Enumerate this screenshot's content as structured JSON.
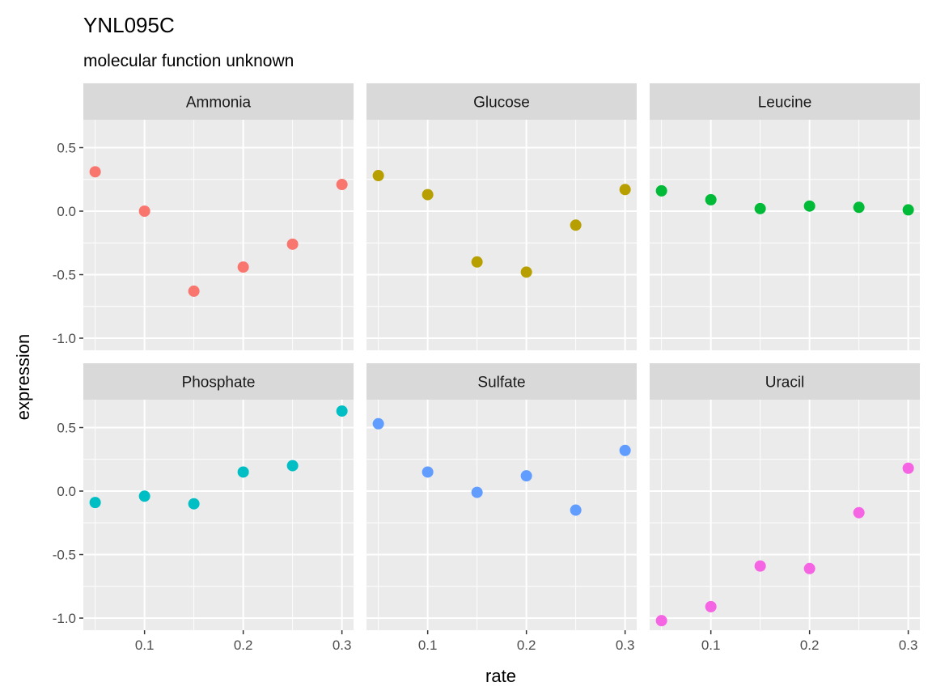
{
  "chart_data": {
    "type": "scatter",
    "title": "YNL095C",
    "subtitle": "molecular function unknown",
    "xlabel": "rate",
    "ylabel": "expression",
    "xlim": [
      0.05,
      0.3
    ],
    "ylim": [
      -1.02,
      0.63
    ],
    "x_ticks": [
      0.1,
      0.2,
      0.3
    ],
    "x_tick_labels": [
      "0.1",
      "0.2",
      "0.3"
    ],
    "y_ticks": [
      0.5,
      0.0,
      -0.5,
      -1.0
    ],
    "y_tick_labels": [
      "0.5",
      "0.0",
      "-0.5",
      "-1.0"
    ],
    "grid": true,
    "facets": [
      {
        "name": "Ammonia",
        "color": "#F8766D",
        "x": [
          0.05,
          0.1,
          0.15,
          0.2,
          0.25,
          0.3
        ],
        "y": [
          0.31,
          0.0,
          -0.63,
          -0.44,
          -0.26,
          0.21
        ]
      },
      {
        "name": "Glucose",
        "color": "#B79F00",
        "x": [
          0.05,
          0.1,
          0.15,
          0.2,
          0.25,
          0.3
        ],
        "y": [
          0.28,
          0.13,
          -0.4,
          -0.48,
          -0.11,
          0.17
        ]
      },
      {
        "name": "Leucine",
        "color": "#00BA38",
        "x": [
          0.05,
          0.1,
          0.15,
          0.2,
          0.25,
          0.3
        ],
        "y": [
          0.16,
          0.09,
          0.02,
          0.04,
          0.03,
          0.01
        ]
      },
      {
        "name": "Phosphate",
        "color": "#00BFC4",
        "x": [
          0.05,
          0.1,
          0.15,
          0.2,
          0.25,
          0.3
        ],
        "y": [
          -0.09,
          -0.04,
          -0.1,
          0.15,
          0.2,
          0.63
        ]
      },
      {
        "name": "Sulfate",
        "color": "#619CFF",
        "x": [
          0.05,
          0.1,
          0.15,
          0.2,
          0.25,
          0.3
        ],
        "y": [
          0.53,
          0.15,
          -0.01,
          0.12,
          -0.15,
          0.32
        ]
      },
      {
        "name": "Uracil",
        "color": "#F564E3",
        "x": [
          0.05,
          0.1,
          0.15,
          0.2,
          0.25,
          0.3
        ],
        "y": [
          -1.02,
          -0.91,
          -0.59,
          -0.61,
          -0.17,
          0.18
        ]
      }
    ]
  }
}
